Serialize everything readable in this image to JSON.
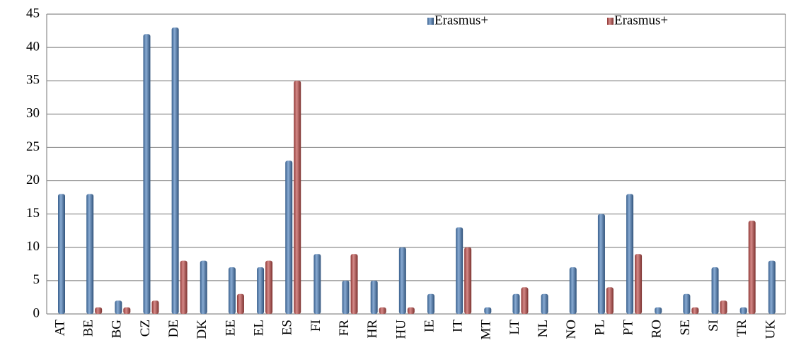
{
  "chart_data": {
    "type": "bar",
    "categories": [
      "AT",
      "BE",
      "BG",
      "CZ",
      "DE",
      "DK",
      "EE",
      "EL",
      "ES",
      "FI",
      "FR",
      "HR",
      "HU",
      "IE",
      "IT",
      "MT",
      "LT",
      "NL",
      "NO",
      "PL",
      "PT",
      "RO",
      "SE",
      "SI",
      "TR",
      "UK"
    ],
    "series": [
      {
        "name": "Erasmus+",
        "color": "#4a7ebb",
        "values": [
          18,
          18,
          2,
          42,
          43,
          8,
          7,
          7,
          23,
          9,
          5,
          5,
          10,
          3,
          13,
          1,
          3,
          3,
          7,
          15,
          18,
          1,
          3,
          7,
          1,
          8
        ]
      },
      {
        "name": "Erasmus+",
        "color": "#be4b48",
        "values": [
          0,
          1,
          1,
          2,
          8,
          0,
          3,
          8,
          35,
          0,
          9,
          1,
          1,
          0,
          10,
          0,
          4,
          0,
          0,
          4,
          9,
          0,
          1,
          2,
          14,
          0
        ]
      }
    ],
    "ylim": [
      0,
      45
    ],
    "yticks": [
      0,
      5,
      10,
      15,
      20,
      25,
      30,
      35,
      40,
      45
    ],
    "grid": true,
    "legend": "top-right"
  }
}
